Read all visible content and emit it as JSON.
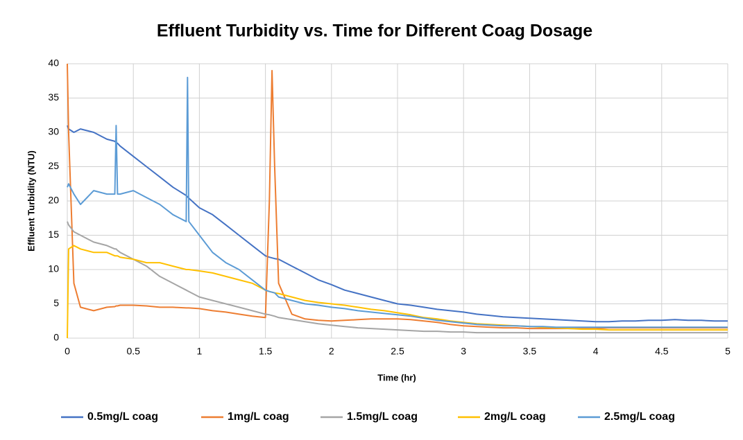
{
  "chart_data": {
    "type": "line",
    "title": "Effluent Turbidity vs. Time for Different Coag Dosage",
    "x_label": "Time (hr)",
    "y_label": "Effluent Turbidity (NTU)",
    "x": [
      0,
      0.01,
      0.05,
      0.1,
      0.2,
      0.3,
      0.36,
      0.37,
      0.38,
      0.4,
      0.5,
      0.6,
      0.7,
      0.8,
      0.9,
      0.91,
      0.92,
      1,
      1.1,
      1.2,
      1.3,
      1.4,
      1.5,
      1.53,
      1.55,
      1.57,
      1.6,
      1.7,
      1.8,
      1.9,
      2,
      2.1,
      2.2,
      2.3,
      2.4,
      2.5,
      2.6,
      2.7,
      2.8,
      2.9,
      3,
      3.1,
      3.2,
      3.3,
      3.4,
      3.5,
      3.6,
      3.7,
      3.8,
      3.9,
      4,
      4.1,
      4.2,
      4.3,
      4.4,
      4.5,
      4.6,
      4.7,
      4.8,
      4.9,
      5
    ],
    "series": [
      {
        "name": "0.5mg/L coag",
        "color": "#4472c4",
        "values": [
          31,
          30.5,
          30,
          30.5,
          30,
          29,
          28.7,
          28.5,
          28.4,
          28,
          26.5,
          25,
          23.5,
          22,
          20.8,
          20.6,
          20.4,
          19,
          18,
          16.5,
          15,
          13.5,
          12,
          11.8,
          11.7,
          11.6,
          11.5,
          10.5,
          9.5,
          8.5,
          7.8,
          7,
          6.5,
          6,
          5.5,
          5,
          4.8,
          4.5,
          4.2,
          4,
          3.8,
          3.5,
          3.3,
          3.1,
          3,
          2.9,
          2.8,
          2.7,
          2.6,
          2.5,
          2.4,
          2.4,
          2.5,
          2.5,
          2.6,
          2.6,
          2.7,
          2.6,
          2.6,
          2.5,
          2.5
        ]
      },
      {
        "name": "1mg/L coag",
        "color": "#ed7d31",
        "values": [
          40,
          30,
          8,
          4.5,
          4,
          4.5,
          4.6,
          4.7,
          4.7,
          4.8,
          4.8,
          4.7,
          4.5,
          4.5,
          4.4,
          4.4,
          4.4,
          4.3,
          4,
          3.8,
          3.5,
          3.2,
          3,
          20,
          39,
          25,
          8,
          3.5,
          2.8,
          2.6,
          2.5,
          2.6,
          2.7,
          2.8,
          2.8,
          2.8,
          2.7,
          2.5,
          2.3,
          2,
          1.8,
          1.7,
          1.6,
          1.5,
          1.5,
          1.4,
          1.4,
          1.4,
          1.4,
          1.4,
          1.4,
          1.5,
          1.5,
          1.5,
          1.5,
          1.5,
          1.5,
          1.5,
          1.5,
          1.5,
          1.5
        ]
      },
      {
        "name": "1.5mg/L coag",
        "color": "#a5a5a5",
        "values": [
          17,
          16.5,
          15.5,
          15,
          14,
          13.5,
          13,
          13,
          12.8,
          12.5,
          11.5,
          10.5,
          9,
          8,
          7,
          6.9,
          6.8,
          6,
          5.5,
          5,
          4.5,
          4,
          3.5,
          3.4,
          3.3,
          3.2,
          3,
          2.7,
          2.4,
          2.1,
          1.9,
          1.7,
          1.5,
          1.4,
          1.3,
          1.2,
          1.1,
          1,
          1,
          0.9,
          0.9,
          0.8,
          0.8,
          0.8,
          0.8,
          0.8,
          0.8,
          0.8,
          0.8,
          0.8,
          0.8,
          0.8,
          0.8,
          0.8,
          0.8,
          0.8,
          0.8,
          0.8,
          0.8,
          0.8,
          0.8
        ]
      },
      {
        "name": "2mg/L coag",
        "color": "#ffc000",
        "values": [
          0,
          13,
          13.5,
          13,
          12.5,
          12.5,
          12,
          12,
          12,
          11.8,
          11.5,
          11,
          11,
          10.5,
          10,
          10,
          10,
          9.8,
          9.5,
          9,
          8.5,
          8,
          7,
          6.8,
          6.7,
          6.6,
          6.5,
          6,
          5.5,
          5.2,
          5,
          4.8,
          4.5,
          4.2,
          4,
          3.7,
          3.4,
          3,
          2.8,
          2.5,
          2.3,
          2.1,
          2,
          1.9,
          1.8,
          1.7,
          1.6,
          1.5,
          1.4,
          1.3,
          1.3,
          1.2,
          1.2,
          1.2,
          1.2,
          1.2,
          1.2,
          1.2,
          1.2,
          1.2,
          1.2
        ]
      },
      {
        "name": "2.5mg/L coag",
        "color": "#5b9bd5",
        "values": [
          22,
          22.5,
          21,
          19.5,
          21.5,
          21,
          21,
          31,
          21,
          21,
          21.5,
          20.5,
          19.5,
          18,
          17,
          38,
          17,
          15,
          12.5,
          11,
          10,
          8.5,
          7,
          6.8,
          6.7,
          6.6,
          6,
          5.5,
          5,
          4.8,
          4.5,
          4.3,
          4,
          3.8,
          3.6,
          3.4,
          3.2,
          2.9,
          2.6,
          2.4,
          2.2,
          2,
          1.9,
          1.8,
          1.8,
          1.7,
          1.7,
          1.6,
          1.6,
          1.6,
          1.6,
          1.6,
          1.6,
          1.6,
          1.6,
          1.6,
          1.6,
          1.6,
          1.6,
          1.6,
          1.6
        ]
      }
    ],
    "xlim": [
      0,
      5
    ],
    "xticks": [
      0,
      0.5,
      1,
      1.5,
      2,
      2.5,
      3,
      3.5,
      4,
      4.5,
      5
    ],
    "ylim": [
      0,
      40
    ],
    "yticks": [
      0,
      5,
      10,
      15,
      20,
      25,
      30,
      35,
      40
    ],
    "grid": true,
    "legend": "bottom"
  }
}
